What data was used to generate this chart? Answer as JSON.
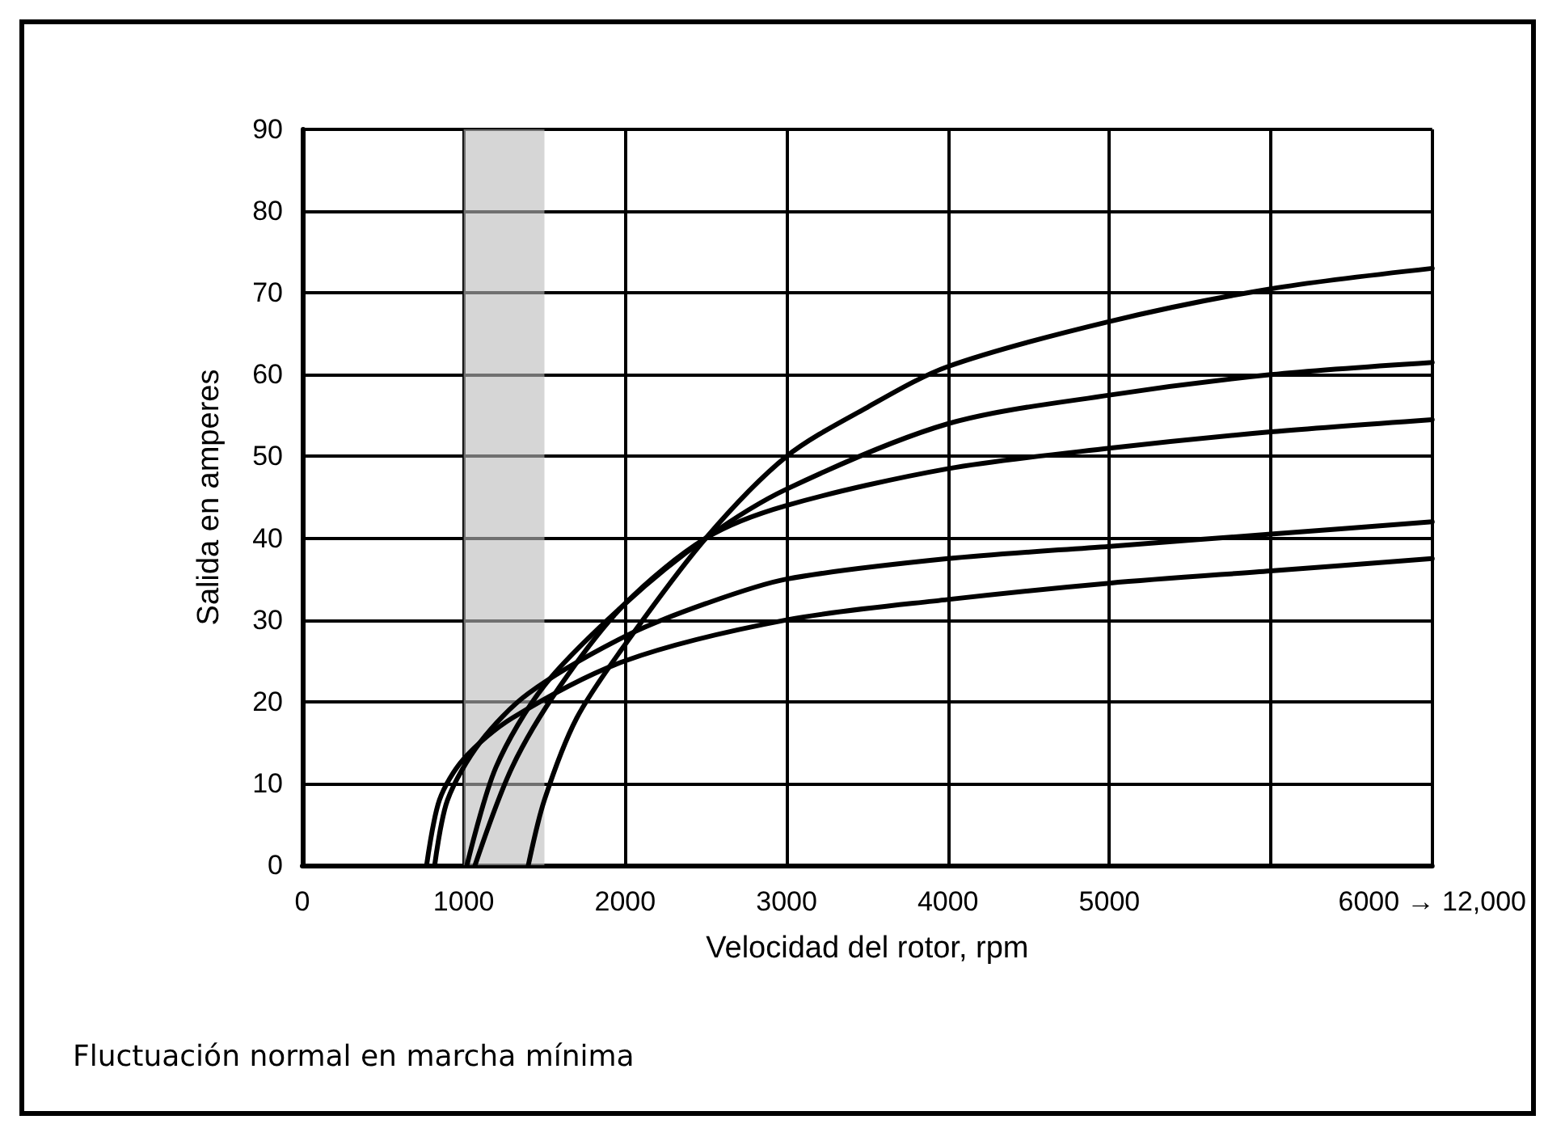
{
  "chart_data": {
    "type": "line",
    "xlabel": "Velocidad del rotor, rpm",
    "ylabel": "Salida en amperes",
    "annotations": [
      "Fluctuación normal en marcha mínima"
    ],
    "xlim": [
      0,
      7000
    ],
    "ylim": [
      0,
      90
    ],
    "xticks": [
      0,
      1000,
      2000,
      3000,
      4000,
      5000,
      {
        "value": 6000,
        "label": null
      },
      {
        "value": 7000,
        "label": "6000 → 12,000"
      }
    ],
    "yticks": [
      0,
      10,
      20,
      30,
      40,
      50,
      60,
      70,
      80,
      90
    ],
    "grid": true,
    "marker": "none",
    "line_style": "solid",
    "bands": [
      {
        "axis": "x",
        "from": 1000,
        "to": 1500,
        "color": "#bbbbbb"
      }
    ],
    "series": [
      {
        "color": "#000000",
        "x": [
          1400,
          1500,
          1700,
          2000,
          2500,
          3000,
          3500,
          4000,
          5000,
          6000,
          7000
        ],
        "values": [
          0,
          8,
          18,
          27,
          40,
          50,
          56,
          61,
          66.5,
          70.5,
          73
        ]
      },
      {
        "color": "#000000",
        "x": [
          1020,
          1200,
          1500,
          2000,
          2500,
          3000,
          4000,
          5000,
          6000,
          7000
        ],
        "values": [
          0,
          12,
          22,
          32,
          40,
          46,
          54,
          57.5,
          60,
          61.5
        ]
      },
      {
        "color": "#000000",
        "x": [
          1070,
          1300,
          1600,
          2000,
          2500,
          3000,
          4000,
          5000,
          6000,
          7000
        ],
        "values": [
          0,
          12,
          22,
          32,
          40,
          44,
          48.5,
          51,
          53,
          54.5
        ]
      },
      {
        "color": "#000000",
        "x": [
          820,
          900,
          1100,
          1400,
          2000,
          2500,
          3000,
          4000,
          5000,
          6000,
          7000
        ],
        "values": [
          0,
          8,
          15,
          21,
          28,
          32,
          35,
          37.5,
          39,
          40.5,
          42
        ]
      },
      {
        "color": "#000000",
        "x": [
          770,
          850,
          1000,
          1300,
          2000,
          3000,
          4000,
          5000,
          6000,
          7000
        ],
        "values": [
          0,
          8,
          13,
          18,
          25,
          30,
          32.5,
          34.5,
          36,
          37.5
        ]
      }
    ]
  }
}
